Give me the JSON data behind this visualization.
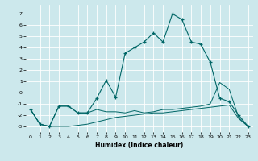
{
  "xlabel": "Humidex (Indice chaleur)",
  "background_color": "#cce8ec",
  "grid_color": "#ffffff",
  "line_color": "#006666",
  "line1_x": [
    0,
    1,
    2,
    3,
    4,
    5,
    6,
    7,
    8,
    9,
    10,
    11,
    12,
    13,
    14,
    15,
    16,
    17,
    18,
    19,
    20,
    21,
    22,
    23
  ],
  "line1_y": [
    -1.5,
    -2.8,
    -3.0,
    -1.2,
    -1.2,
    -1.8,
    -1.8,
    -0.5,
    1.1,
    -0.4,
    3.5,
    4.0,
    4.5,
    5.3,
    4.5,
    7.0,
    6.5,
    4.5,
    4.3,
    2.7,
    -0.5,
    -0.8,
    -2.0,
    -3.0
  ],
  "line2_x": [
    0,
    1,
    2,
    3,
    4,
    5,
    6,
    7,
    8,
    9,
    10,
    11,
    12,
    13,
    14,
    15,
    16,
    17,
    18,
    19,
    20,
    21,
    22,
    23
  ],
  "line2_y": [
    -1.5,
    -2.8,
    -3.0,
    -1.2,
    -1.2,
    -1.8,
    -1.8,
    -1.5,
    -1.7,
    -1.7,
    -1.8,
    -1.6,
    -1.8,
    -1.7,
    -1.5,
    -1.5,
    -1.4,
    -1.3,
    -1.2,
    -1.0,
    0.9,
    0.3,
    -2.2,
    -3.0
  ],
  "line3_x": [
    0,
    1,
    2,
    3,
    4,
    5,
    6,
    7,
    8,
    9,
    10,
    11,
    12,
    13,
    14,
    15,
    16,
    17,
    18,
    19,
    20,
    21,
    22,
    23
  ],
  "line3_y": [
    -1.5,
    -2.8,
    -3.0,
    -3.0,
    -3.0,
    -2.9,
    -2.8,
    -2.6,
    -2.4,
    -2.2,
    -2.1,
    -2.0,
    -1.9,
    -1.8,
    -1.8,
    -1.7,
    -1.6,
    -1.5,
    -1.4,
    -1.3,
    -1.2,
    -1.1,
    -2.3,
    -3.0
  ],
  "ylim": [
    -3.5,
    7.8
  ],
  "xlim": [
    -0.5,
    23.5
  ],
  "yticks": [
    -3,
    -2,
    -1,
    0,
    1,
    2,
    3,
    4,
    5,
    6,
    7
  ],
  "xticks": [
    0,
    1,
    2,
    3,
    4,
    5,
    6,
    7,
    8,
    9,
    10,
    11,
    12,
    13,
    14,
    15,
    16,
    17,
    18,
    19,
    20,
    21,
    22,
    23
  ],
  "xlabel_fontsize": 5.5,
  "tick_labelsize": 4.5
}
